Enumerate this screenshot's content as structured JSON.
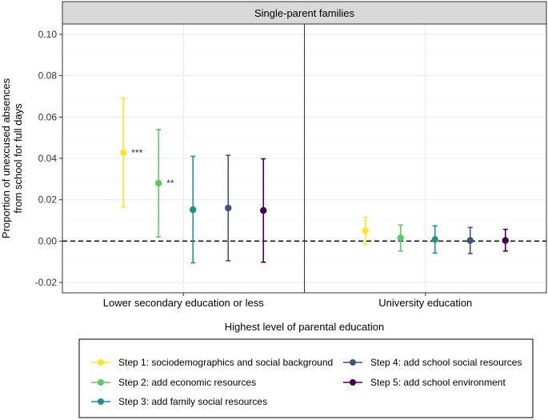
{
  "chart_data": {
    "type": "scatter",
    "facet_title": "Single-parent families",
    "xlabel": "Highest level of parental education",
    "ylabel_line1": "Proportion of unexcused absences",
    "ylabel_line2": "from school for full days",
    "categories": [
      "Lower secondary education or less",
      "University education"
    ],
    "ylim": [
      -0.025,
      0.105
    ],
    "yticks": [
      -0.02,
      0.0,
      0.02,
      0.04,
      0.06,
      0.08,
      0.1
    ],
    "ytick_labels": [
      "-0.02",
      "0.00",
      "0.02",
      "0.04",
      "0.06",
      "0.08",
      "0.10"
    ],
    "reference_line": 0,
    "series": [
      {
        "name": "Step 1: sociodemographics and social background",
        "color": "#FDE725",
        "points": [
          {
            "est": 0.0428,
            "lo": 0.0165,
            "hi": 0.069,
            "sig": "***"
          },
          {
            "est": 0.005,
            "lo": -0.0015,
            "hi": 0.0115,
            "sig": ""
          }
        ]
      },
      {
        "name": "Step 2: add economic resources",
        "color": "#5DC863",
        "points": [
          {
            "est": 0.028,
            "lo": 0.002,
            "hi": 0.054,
            "sig": "**"
          },
          {
            "est": 0.0015,
            "lo": -0.0048,
            "hi": 0.0078,
            "sig": ""
          }
        ]
      },
      {
        "name": "Step 3: add family social resources",
        "color": "#21908C",
        "points": [
          {
            "est": 0.0152,
            "lo": -0.0105,
            "hi": 0.041,
            "sig": ""
          },
          {
            "est": 0.0008,
            "lo": -0.0058,
            "hi": 0.0074,
            "sig": ""
          }
        ]
      },
      {
        "name": "Step 4: add school social resources",
        "color": "#3B528B",
        "points": [
          {
            "est": 0.016,
            "lo": -0.0095,
            "hi": 0.0415,
            "sig": ""
          },
          {
            "est": 0.0003,
            "lo": -0.006,
            "hi": 0.0066,
            "sig": ""
          }
        ]
      },
      {
        "name": "Step 5: add school environment",
        "color": "#440154",
        "points": [
          {
            "est": 0.0148,
            "lo": -0.0102,
            "hi": 0.0398,
            "sig": ""
          },
          {
            "est": 0.0003,
            "lo": -0.0048,
            "hi": 0.0057,
            "sig": ""
          }
        ]
      }
    ]
  }
}
